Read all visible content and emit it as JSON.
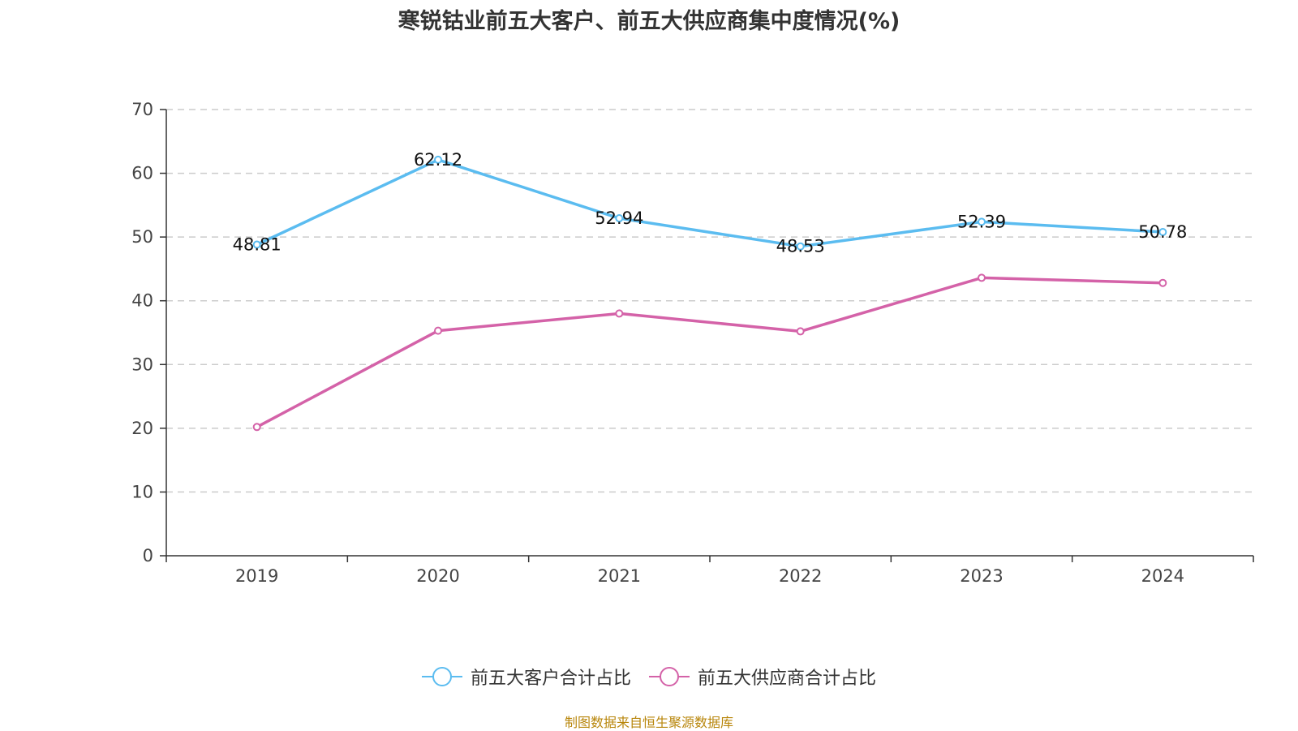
{
  "chart_data": {
    "type": "line",
    "title": "寒锐钴业前五大客户、前五大供应商集中度情况(%)",
    "categories": [
      "2019",
      "2020",
      "2021",
      "2022",
      "2023",
      "2024"
    ],
    "ylim": [
      0,
      70
    ],
    "yticks": [
      0,
      10,
      20,
      30,
      40,
      50,
      60,
      70
    ],
    "grid": true,
    "legend_position": "bottom",
    "series": [
      {
        "name": "前五大客户合计占比",
        "color": "#5bbcf0",
        "values": [
          48.81,
          62.12,
          52.94,
          48.53,
          52.39,
          50.78
        ],
        "labels": [
          "48.81",
          "62.12",
          "52.94",
          "48.53",
          "52.39",
          "50.78"
        ]
      },
      {
        "name": "前五大供应商合计占比",
        "color": "#d462a8",
        "values": [
          20.2,
          35.3,
          38.0,
          35.2,
          43.6,
          42.8
        ],
        "labels": []
      }
    ]
  },
  "footer": {
    "source": "制图数据来自恒生聚源数据库"
  }
}
